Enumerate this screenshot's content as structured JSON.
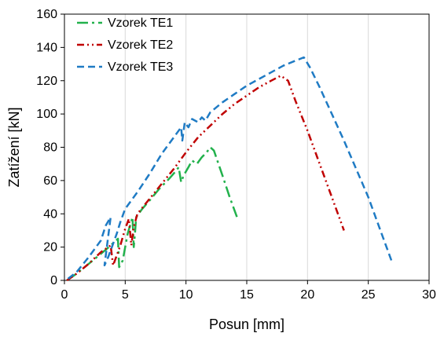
{
  "chart_data": {
    "type": "line",
    "title": "",
    "xlabel": "Posun [mm]",
    "ylabel": "Zatížení [kN]",
    "xlim": [
      0,
      30
    ],
    "ylim": [
      0,
      160
    ],
    "x_ticks": [
      0,
      5,
      10,
      15,
      20,
      25,
      30
    ],
    "y_ticks": [
      0,
      20,
      40,
      60,
      80,
      100,
      120,
      140,
      160
    ],
    "grid": "vertical",
    "legend_position": "top-left",
    "series": [
      {
        "name": "Vzorek TE1",
        "color": "#22b14c",
        "dash": "long-dash-dot",
        "points": [
          [
            0.2,
            0
          ],
          [
            0.8,
            3
          ],
          [
            1.5,
            7
          ],
          [
            2.5,
            13
          ],
          [
            3.5,
            19
          ],
          [
            4.4,
            25
          ],
          [
            4.5,
            8
          ],
          [
            4.8,
            12
          ],
          [
            5.0,
            20
          ],
          [
            5.2,
            28
          ],
          [
            5.4,
            33
          ],
          [
            5.6,
            38
          ],
          [
            5.7,
            20
          ],
          [
            5.8,
            28
          ],
          [
            5.9,
            38
          ],
          [
            6.4,
            43
          ],
          [
            7.0,
            48
          ],
          [
            7.8,
            55
          ],
          [
            8.6,
            61
          ],
          [
            9.2,
            66
          ],
          [
            9.4,
            68
          ],
          [
            9.6,
            59
          ],
          [
            9.8,
            63
          ],
          [
            10.2,
            68
          ],
          [
            10.5,
            72
          ],
          [
            10.9,
            70
          ],
          [
            11.3,
            74
          ],
          [
            11.7,
            77
          ],
          [
            12.0,
            80
          ],
          [
            12.3,
            78
          ],
          [
            13.0,
            63
          ],
          [
            13.6,
            50
          ],
          [
            14.2,
            38
          ]
        ]
      },
      {
        "name": "Vzorek TE2",
        "color": "#c00000",
        "dash": "dash-dot-dot",
        "points": [
          [
            0.2,
            0
          ],
          [
            1.0,
            4
          ],
          [
            2.0,
            10
          ],
          [
            3.0,
            17
          ],
          [
            3.8,
            21
          ],
          [
            4.0,
            9
          ],
          [
            4.2,
            13
          ],
          [
            4.6,
            21
          ],
          [
            5.0,
            31
          ],
          [
            5.3,
            37
          ],
          [
            5.5,
            21
          ],
          [
            5.7,
            32
          ],
          [
            6.0,
            40
          ],
          [
            7.0,
            49
          ],
          [
            8.0,
            58
          ],
          [
            9.0,
            67
          ],
          [
            10.0,
            77
          ],
          [
            11.0,
            86
          ],
          [
            12.0,
            93
          ],
          [
            13.0,
            100
          ],
          [
            14.0,
            106
          ],
          [
            15.0,
            111
          ],
          [
            16.0,
            116
          ],
          [
            17.0,
            120
          ],
          [
            17.8,
            123
          ],
          [
            18.4,
            120
          ],
          [
            19.0,
            108
          ],
          [
            20.0,
            90
          ],
          [
            21.0,
            70
          ],
          [
            22.0,
            50
          ],
          [
            23.0,
            30
          ]
        ]
      },
      {
        "name": "Vzorek TE3",
        "color": "#1f7bc4",
        "dash": "dashed",
        "points": [
          [
            0.3,
            1
          ],
          [
            1.0,
            5
          ],
          [
            2.0,
            14
          ],
          [
            3.0,
            24
          ],
          [
            3.4,
            33
          ],
          [
            3.8,
            38
          ],
          [
            3.3,
            9
          ],
          [
            3.6,
            14
          ],
          [
            4.0,
            22
          ],
          [
            4.3,
            28
          ],
          [
            4.6,
            35
          ],
          [
            5.0,
            43
          ],
          [
            6.0,
            53
          ],
          [
            7.0,
            64
          ],
          [
            8.0,
            76
          ],
          [
            9.0,
            86
          ],
          [
            9.6,
            92
          ],
          [
            9.7,
            84
          ],
          [
            9.9,
            95
          ],
          [
            10.2,
            92
          ],
          [
            10.5,
            97
          ],
          [
            11.0,
            95
          ],
          [
            11.3,
            98
          ],
          [
            11.6,
            96
          ],
          [
            12.0,
            101
          ],
          [
            13.0,
            107
          ],
          [
            14.0,
            112
          ],
          [
            15.0,
            117
          ],
          [
            16.0,
            121
          ],
          [
            17.0,
            125
          ],
          [
            18.0,
            129
          ],
          [
            19.0,
            132
          ],
          [
            19.7,
            134
          ],
          [
            20.2,
            128
          ],
          [
            21.0,
            116
          ],
          [
            22.0,
            100
          ],
          [
            23.0,
            84
          ],
          [
            24.0,
            67
          ],
          [
            25.0,
            50
          ],
          [
            26.0,
            30
          ],
          [
            27.0,
            10
          ]
        ]
      }
    ]
  }
}
